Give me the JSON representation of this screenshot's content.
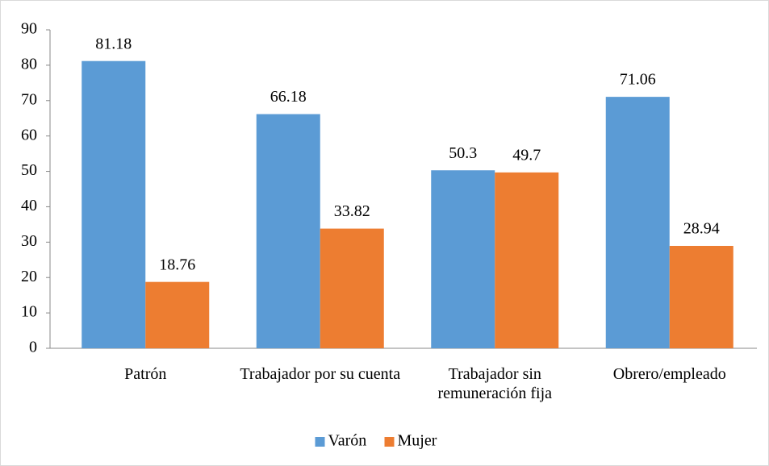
{
  "chart_data": {
    "type": "bar",
    "categories": [
      "Patrón",
      "Trabajador por su cuenta",
      "Trabajador sin remuneración fija",
      "Obrero/empleado"
    ],
    "series": [
      {
        "name": "Varón",
        "color": "#5b9bd5",
        "values": [
          81.18,
          66.18,
          50.3,
          71.06
        ]
      },
      {
        "name": "Mujer",
        "color": "#ed7d31",
        "values": [
          18.76,
          33.82,
          49.7,
          28.94
        ]
      }
    ],
    "ylim": [
      0,
      90
    ],
    "yticks": [
      0,
      10,
      20,
      30,
      40,
      50,
      60,
      70,
      80,
      90
    ],
    "legend": "bottom"
  }
}
